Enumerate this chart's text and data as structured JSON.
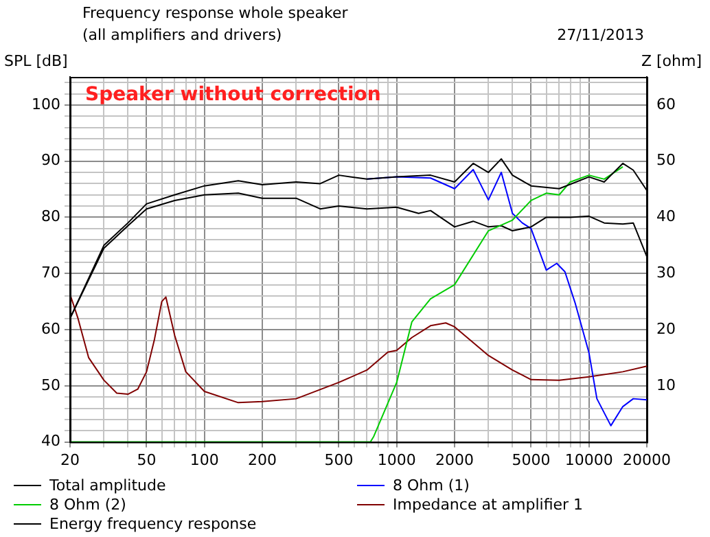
{
  "chart_data": {
    "type": "line",
    "title": "Frequency response whole speaker",
    "subtitle": "(all amplifiers and drivers)",
    "ylabel": "SPL [dB]",
    "y2label": "Z [ohm]",
    "annotations": [
      "27/11/2013",
      "Speaker without correction"
    ],
    "log": "x",
    "grid": true,
    "legend": "bottom",
    "marker": "none",
    "line_style": "solid",
    "xlim": [
      20,
      20000
    ],
    "xticks": [
      20,
      {
        "value": 30,
        "label": null
      },
      {
        "value": 40,
        "label": null
      },
      50,
      {
        "value": 60,
        "label": null
      },
      {
        "value": 70,
        "label": null
      },
      {
        "value": 80,
        "label": null
      },
      {
        "value": 90,
        "label": null
      },
      100,
      200,
      {
        "value": 300,
        "label": null
      },
      {
        "value": 400,
        "label": null
      },
      500,
      {
        "value": 600,
        "label": null
      },
      {
        "value": 700,
        "label": null
      },
      {
        "value": 800,
        "label": null
      },
      {
        "value": 900,
        "label": null
      },
      1000,
      2000,
      {
        "value": 3000,
        "label": null
      },
      {
        "value": 4000,
        "label": null
      },
      5000,
      {
        "value": 6000,
        "label": null
      },
      {
        "value": 7000,
        "label": null
      },
      {
        "value": 8000,
        "label": null
      },
      {
        "value": 9000,
        "label": null
      },
      10000,
      20000
    ],
    "ylim": [
      40,
      105
    ],
    "yticks": [
      40,
      {
        "value": 42,
        "label": null
      },
      {
        "value": 44,
        "label": null
      },
      {
        "value": 46,
        "label": null
      },
      {
        "value": 48,
        "label": null
      },
      50,
      {
        "value": 52,
        "label": null
      },
      {
        "value": 54,
        "label": null
      },
      {
        "value": 56,
        "label": null
      },
      {
        "value": 58,
        "label": null
      },
      60,
      {
        "value": 62,
        "label": null
      },
      {
        "value": 64,
        "label": null
      },
      {
        "value": 66,
        "label": null
      },
      {
        "value": 68,
        "label": null
      },
      70,
      {
        "value": 72,
        "label": null
      },
      {
        "value": 74,
        "label": null
      },
      {
        "value": 76,
        "label": null
      },
      {
        "value": 78,
        "label": null
      },
      80,
      {
        "value": 82,
        "label": null
      },
      {
        "value": 84,
        "label": null
      },
      {
        "value": 86,
        "label": null
      },
      {
        "value": 88,
        "label": null
      },
      90,
      {
        "value": 92,
        "label": null
      },
      {
        "value": 94,
        "label": null
      },
      {
        "value": 96,
        "label": null
      },
      {
        "value": 98,
        "label": null
      },
      100,
      {
        "value": 102,
        "label": null
      },
      {
        "value": 104,
        "label": null
      }
    ],
    "y2lim": [
      0,
      65
    ],
    "y2ticks": [
      10,
      20,
      30,
      40,
      50,
      60
    ],
    "series": [
      {
        "name": "Total amplitude",
        "color": "#000000",
        "x": [
          20,
          30,
          40,
          50,
          70,
          100,
          150,
          200,
          300,
          400,
          500,
          700,
          1000,
          1500,
          2000,
          2500,
          3000,
          3500,
          4000,
          5000,
          7000,
          10000,
          12000,
          15000,
          17000,
          20000
        ],
        "values": [
          62,
          75,
          79,
          82.4,
          84,
          85.6,
          86.5,
          85.8,
          86.3,
          86,
          87.5,
          86.8,
          87.2,
          87.5,
          86.3,
          89.6,
          88,
          90.4,
          87.5,
          85.6,
          85.1,
          87.2,
          86.3,
          89.6,
          88.4,
          84.8
        ]
      },
      {
        "name": "8 Ohm (2)",
        "color": "#00cc00",
        "x": [
          20,
          730,
          760,
          1000,
          1200,
          1500,
          2000,
          3000,
          4000,
          5000,
          6000,
          7000,
          8000,
          10000,
          12000,
          15000
        ],
        "values": [
          40,
          40,
          41,
          50.6,
          61.4,
          65.5,
          68,
          77.6,
          79.5,
          83,
          84.3,
          84,
          86.3,
          87.5,
          86.8,
          89
        ]
      },
      {
        "name": "Energy frequency response",
        "color": "#000000",
        "x": [
          20,
          30,
          40,
          50,
          70,
          100,
          150,
          200,
          300,
          400,
          500,
          700,
          1000,
          1300,
          1500,
          2000,
          2500,
          3000,
          3500,
          4000,
          5000,
          6000,
          8000,
          10000,
          12000,
          15000,
          17000,
          20000
        ],
        "values": [
          62,
          74.5,
          78.5,
          81.5,
          83,
          84,
          84.3,
          83.4,
          83.4,
          81.5,
          82,
          81.5,
          81.8,
          80.7,
          81.2,
          78.3,
          79.3,
          78.3,
          78.5,
          77.6,
          78.3,
          80,
          80,
          80.2,
          79,
          78.8,
          79,
          73
        ]
      },
      {
        "name": "8 Ohm (1)",
        "color": "#0000ff",
        "x": [
          700,
          1000,
          1500,
          2000,
          2500,
          3000,
          3500,
          4000,
          4500,
          5000,
          6000,
          6800,
          7500,
          8500,
          10000,
          11000,
          13000,
          15000,
          17000,
          20000
        ],
        "values": [
          86.8,
          87.2,
          87,
          85.1,
          88.5,
          83.1,
          88,
          80.7,
          79,
          78,
          70.6,
          71.8,
          70.3,
          64.6,
          55.9,
          47.7,
          42.9,
          46.3,
          47.7,
          47.5
        ]
      },
      {
        "name": "Impedance at amplifier 1",
        "color": "#800000",
        "axis": "y2",
        "x": [
          20,
          22,
          25,
          30,
          35,
          40,
          45,
          50,
          55,
          60,
          63,
          70,
          80,
          100,
          150,
          200,
          300,
          500,
          700,
          900,
          1000,
          1200,
          1500,
          1800,
          2000,
          3000,
          4000,
          5000,
          7000,
          10000,
          15000,
          20000
        ],
        "values": [
          26.3,
          22,
          15,
          11,
          8.7,
          8.5,
          9.4,
          12.5,
          18.3,
          25,
          25.8,
          19,
          12.5,
          9,
          7,
          7.2,
          7.7,
          10.6,
          12.8,
          16,
          16.3,
          18.6,
          20.7,
          21.2,
          20.5,
          15.4,
          12.8,
          11.1,
          11,
          11.6,
          12.5,
          13.5
        ]
      }
    ]
  }
}
